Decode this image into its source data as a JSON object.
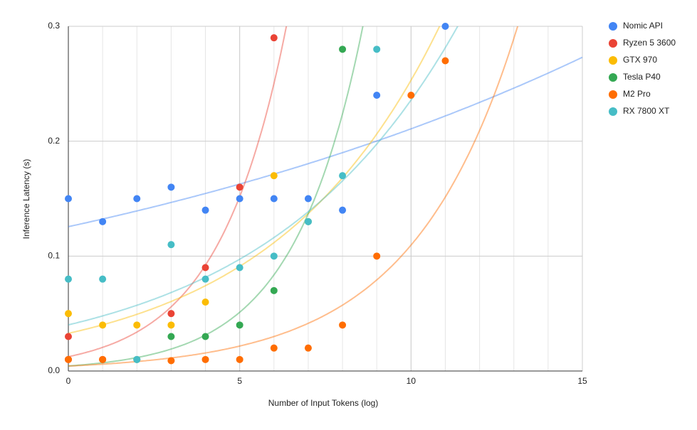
{
  "chart_data": {
    "type": "scatter",
    "x_label": "Number of Input Tokens (log)",
    "y_label": "Inference Latency (s)",
    "xlim": [
      0,
      15
    ],
    "xticks": [
      0,
      5,
      10,
      15
    ],
    "ylim": [
      0,
      0.3
    ],
    "yticks": [
      {
        "value": 0,
        "label": "0.0"
      },
      0.1,
      0.2,
      0.3
    ],
    "grid": true,
    "minor_x_grid": 1,
    "legend": "right",
    "trendline": "exponential",
    "series": [
      {
        "name": "Nomic API",
        "color": "#4285f4",
        "x": [
          0,
          1,
          2,
          3,
          4,
          5,
          6,
          7,
          8,
          9,
          11
        ],
        "values": [
          0.15,
          0.13,
          0.15,
          0.16,
          0.14,
          0.15,
          0.15,
          0.15,
          0.14,
          0.24,
          0.3
        ]
      },
      {
        "name": "Ryzen 5 3600",
        "color": "#ea4335",
        "x": [
          0,
          0,
          1,
          3,
          4,
          5,
          6
        ],
        "values": [
          0.03,
          0.01,
          0.01,
          0.05,
          0.09,
          0.16,
          0.29
        ]
      },
      {
        "name": "GTX 970",
        "color": "#fbbc04",
        "x": [
          0,
          1,
          2,
          3,
          4,
          6
        ],
        "values": [
          0.05,
          0.04,
          0.04,
          0.04,
          0.06,
          0.17
        ]
      },
      {
        "name": "Tesla P40",
        "color": "#34a853",
        "x": [
          2,
          3,
          4,
          5,
          6,
          7,
          8
        ],
        "values": [
          0.01,
          0.03,
          0.03,
          0.04,
          0.07,
          0.13,
          0.28
        ]
      },
      {
        "name": "M2 Pro",
        "color": "#ff6d01",
        "x": [
          0,
          1,
          3,
          4,
          5,
          6,
          7,
          8,
          9,
          10,
          11
        ],
        "values": [
          0.01,
          0.01,
          0.009,
          0.01,
          0.01,
          0.02,
          0.02,
          0.04,
          0.1,
          0.24,
          0.27
        ]
      },
      {
        "name": "RX 7800 XT",
        "color": "#46bdc6",
        "x": [
          0,
          1,
          2,
          3,
          4,
          5,
          6,
          7,
          8,
          9
        ],
        "values": [
          0.08,
          0.08,
          0.01,
          0.11,
          0.08,
          0.09,
          0.1,
          0.13,
          0.17,
          0.28
        ]
      }
    ]
  }
}
